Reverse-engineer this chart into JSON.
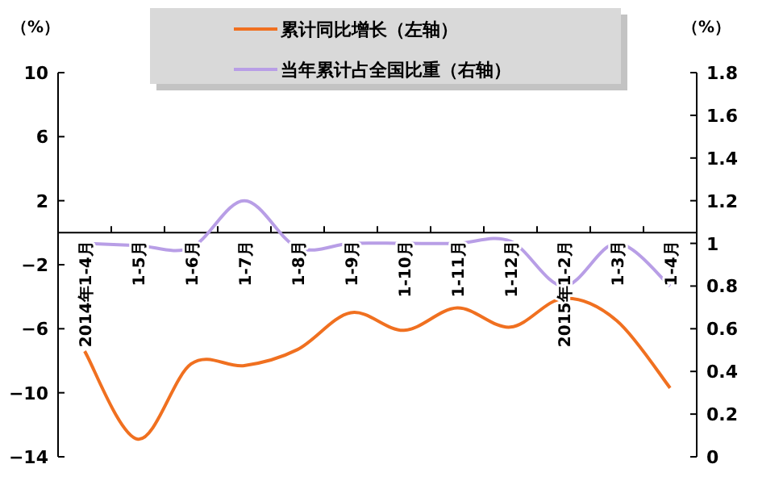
{
  "chart_data": {
    "type": "line",
    "ylabel": "（%）",
    "y2label": "（%）",
    "categories": [
      "2014年1-4月",
      "1-5月",
      "1-6月",
      "1-7月",
      "1-8月",
      "1-9月",
      "1-10月",
      "1-11月",
      "1-12月",
      "2015年1-2月",
      "1-3月",
      "1-4月"
    ],
    "series": [
      {
        "name": "累计同比增长（左轴）",
        "color": "#f07020",
        "axis": "y",
        "values": [
          -7.4,
          -12.9,
          -8.2,
          -8.3,
          -7.3,
          -5.0,
          -6.1,
          -4.7,
          -5.9,
          -4.1,
          -5.5,
          -9.7
        ]
      },
      {
        "name": "当年累计占全国比重（右轴）",
        "color": "#b89ee6",
        "axis": "y2",
        "values": [
          1.0,
          0.99,
          0.98,
          1.2,
          0.98,
          1.0,
          1.0,
          1.0,
          1.01,
          0.8,
          1.0,
          0.8
        ]
      }
    ],
    "ylim": [
      -14,
      10
    ],
    "yticks": [
      -14,
      -10,
      -6,
      -2,
      2,
      6,
      10
    ],
    "y2lim": [
      0,
      1.8
    ],
    "y2ticks": [
      0,
      0.2,
      0.4,
      0.6,
      0.8,
      1,
      1.2,
      1.4,
      1.6,
      1.8
    ],
    "legend": "top",
    "grid": false,
    "marker": "none",
    "line_style": "solid"
  }
}
